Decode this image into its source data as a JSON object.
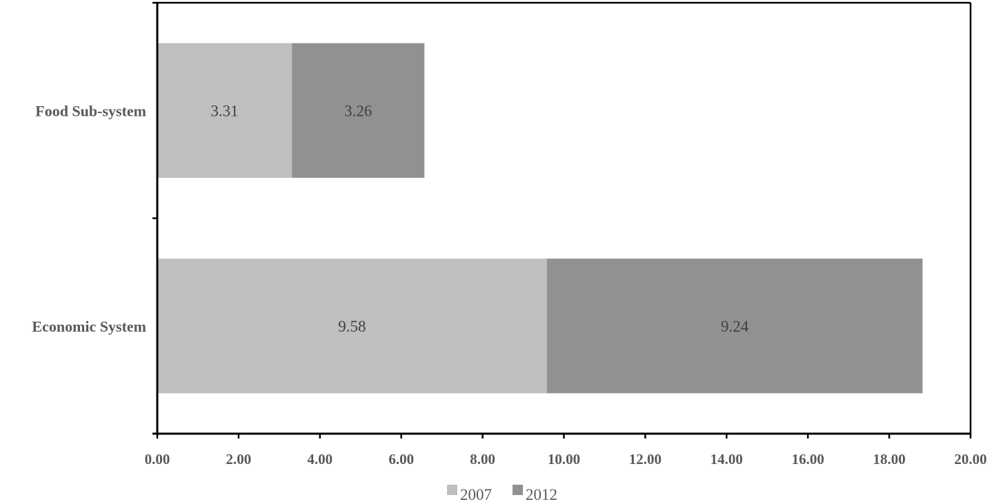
{
  "chart_data": {
    "type": "bar",
    "orientation": "horizontal",
    "stacked": true,
    "title": "",
    "xlabel": "",
    "ylabel": "",
    "categories": [
      "Food Sub-system",
      "Economic System"
    ],
    "series": [
      {
        "name": "2007",
        "values": [
          3.31,
          9.58
        ],
        "color": "#bfbfbf"
      },
      {
        "name": "2012",
        "values": [
          3.26,
          9.24
        ],
        "color": "#919191"
      }
    ],
    "xlim": [
      0,
      20
    ],
    "xticks": [
      "0.00",
      "2.00",
      "4.00",
      "6.00",
      "8.00",
      "10.00",
      "12.00",
      "14.00",
      "16.00",
      "18.00",
      "20.00"
    ],
    "data_labels": true,
    "grid": false,
    "legend": "bottom"
  }
}
